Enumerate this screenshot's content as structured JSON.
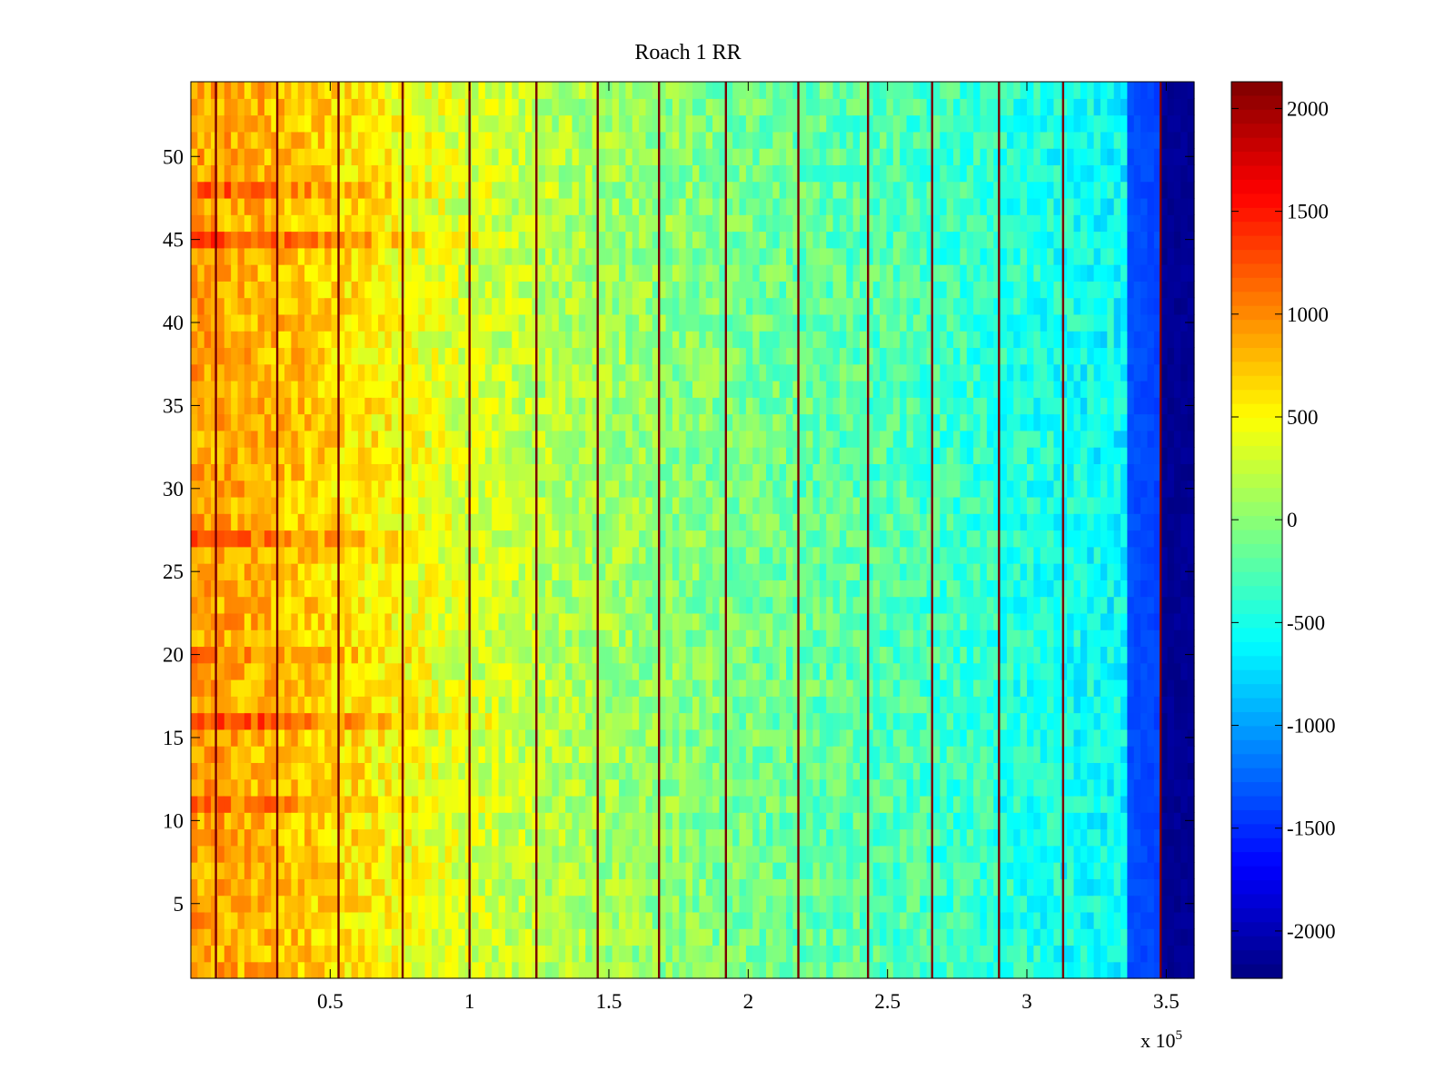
{
  "chart_data": {
    "type": "heatmap",
    "title": "Roach 1 RR",
    "xlabel": "",
    "ylabel": "",
    "x_exponent_label": "x 10",
    "x_exponent_power": "5",
    "xlim": [
      0,
      3.6
    ],
    "ylim": [
      0.5,
      54.5
    ],
    "x_ticks": [
      0.5,
      1,
      1.5,
      2,
      2.5,
      3,
      3.5
    ],
    "x_tick_labels": [
      "0.5",
      "1",
      "1.5",
      "2",
      "2.5",
      "3",
      "3.5"
    ],
    "y_ticks": [
      5,
      10,
      15,
      20,
      25,
      30,
      35,
      40,
      45,
      50
    ],
    "y_tick_labels": [
      "5",
      "10",
      "15",
      "20",
      "25",
      "30",
      "35",
      "40",
      "45",
      "50"
    ],
    "rows": 54,
    "colormap": "jet",
    "clim": [
      -2230,
      2130
    ],
    "colorbar_ticks": [
      2000,
      1500,
      1000,
      500,
      0,
      -500,
      -1000,
      -1500,
      -2000
    ],
    "colorbar_tick_labels": [
      "2000",
      "1500",
      "1000",
      "500",
      "0",
      "-500",
      "-1000",
      "-1500",
      "-2000"
    ],
    "column_trend": [
      {
        "x": 0.0,
        "value": 900
      },
      {
        "x": 0.3,
        "value": 800
      },
      {
        "x": 0.6,
        "value": 600
      },
      {
        "x": 1.0,
        "value": 300
      },
      {
        "x": 1.5,
        "value": 80
      },
      {
        "x": 2.0,
        "value": -100
      },
      {
        "x": 2.5,
        "value": -250
      },
      {
        "x": 3.0,
        "value": -450
      },
      {
        "x": 3.35,
        "value": -600
      },
      {
        "x": 3.36,
        "value": -1350
      },
      {
        "x": 3.47,
        "value": -1400
      },
      {
        "x": 3.49,
        "value": -2150
      },
      {
        "x": 3.6,
        "value": -2150
      }
    ],
    "hot_rows": [
      {
        "row": 16,
        "value": 500
      },
      {
        "row": 11,
        "value": 300
      },
      {
        "row": 27,
        "value": 300
      },
      {
        "row": 45,
        "value": 450
      },
      {
        "row": 48,
        "value": 350
      },
      {
        "row": 20,
        "value": 200
      }
    ],
    "stripe_columns": [
      0.09,
      0.31,
      0.53,
      0.76,
      1.0,
      1.24,
      1.46,
      1.68,
      1.92,
      2.18,
      2.43,
      2.66,
      2.9,
      3.13,
      3.48
    ]
  }
}
